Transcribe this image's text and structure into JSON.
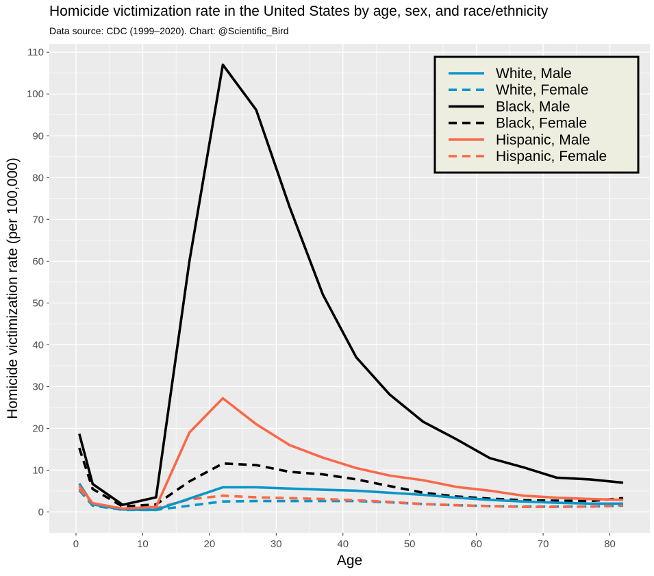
{
  "chart_data": {
    "type": "line",
    "title": "Homicide victimization rate in the United States by age, sex, and race/ethnicity",
    "subtitle": "Data source: CDC (1999–2020). Chart: @Scientific_Bird",
    "xlabel": "Age",
    "ylabel": "Homicide victimization rate (per 100,000)",
    "xlim": [
      -4,
      86
    ],
    "ylim": [
      -5,
      112
    ],
    "x_ticks": [
      0,
      10,
      20,
      30,
      40,
      50,
      60,
      70,
      80
    ],
    "y_ticks": [
      0,
      10,
      20,
      30,
      40,
      50,
      60,
      70,
      80,
      90,
      100,
      110
    ],
    "grid": true,
    "legend_position": "top-right",
    "x": [
      0.5,
      2.5,
      7,
      12,
      17,
      22,
      27,
      32,
      37,
      42,
      47,
      52,
      57,
      62,
      67,
      72,
      77,
      82
    ],
    "series": [
      {
        "name": "White, Male",
        "color": "#0a96c9",
        "dash": "solid",
        "values": [
          6.8,
          1.8,
          0.6,
          0.5,
          3.2,
          5.9,
          5.9,
          5.6,
          5.3,
          5.1,
          4.6,
          4.1,
          3.4,
          2.9,
          2.5,
          2.2,
          2.0,
          2.0
        ]
      },
      {
        "name": "White, Female",
        "color": "#0a96c9",
        "dash": "dashed",
        "values": [
          5.2,
          1.5,
          0.5,
          0.5,
          1.5,
          2.5,
          2.6,
          2.6,
          2.6,
          2.6,
          2.3,
          1.9,
          1.6,
          1.4,
          1.3,
          1.3,
          1.3,
          1.5
        ]
      },
      {
        "name": "Black, Male",
        "color": "#000000",
        "dash": "solid",
        "values": [
          18.7,
          6.7,
          1.7,
          3.5,
          60,
          107,
          96.2,
          73,
          52,
          37,
          28.1,
          21.6,
          17.4,
          12.9,
          10.7,
          8.2,
          7.8,
          7.0
        ]
      },
      {
        "name": "Black, Female",
        "color": "#000000",
        "dash": "dashed",
        "values": [
          15.3,
          5.5,
          1.3,
          1.8,
          7.3,
          11.6,
          11.2,
          9.6,
          9.0,
          7.8,
          6.2,
          4.6,
          3.7,
          3.2,
          2.8,
          2.7,
          2.6,
          3.3
        ]
      },
      {
        "name": "Hispanic, Male",
        "color": "#f8694a",
        "dash": "solid",
        "values": [
          6.2,
          2.1,
          0.8,
          1.2,
          19.0,
          27.2,
          21.0,
          16.0,
          13.0,
          10.5,
          8.7,
          7.6,
          6.0,
          5.1,
          3.9,
          3.4,
          3.1,
          2.9
        ]
      },
      {
        "name": "Hispanic, Female",
        "color": "#f8694a",
        "dash": "dashed",
        "values": [
          5.6,
          1.8,
          0.6,
          0.9,
          3.0,
          3.9,
          3.5,
          3.3,
          3.1,
          2.8,
          2.4,
          1.9,
          1.6,
          1.4,
          1.2,
          1.2,
          1.3,
          1.6
        ]
      }
    ]
  }
}
